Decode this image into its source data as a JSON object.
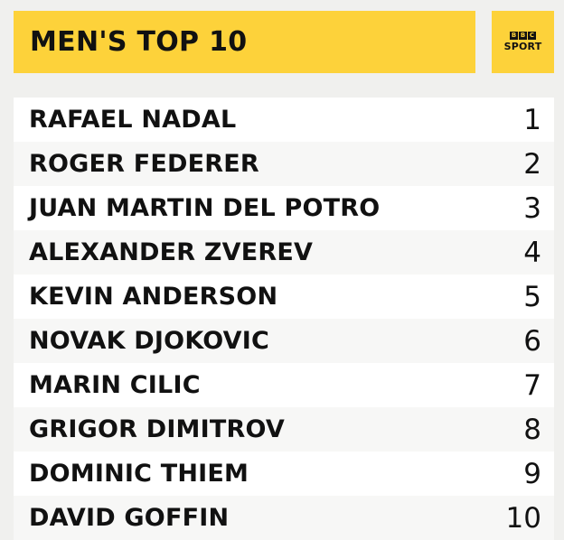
{
  "header": {
    "title": "MEN'S TOP 10"
  },
  "logo": {
    "letters": [
      "B",
      "B",
      "C"
    ],
    "sport": "SPORT"
  },
  "rankings": [
    {
      "name": "RAFAEL NADAL",
      "rank": "1"
    },
    {
      "name": "ROGER FEDERER",
      "rank": "2"
    },
    {
      "name": "JUAN MARTIN DEL POTRO",
      "rank": "3"
    },
    {
      "name": "ALEXANDER ZVEREV",
      "rank": "4"
    },
    {
      "name": "KEVIN ANDERSON",
      "rank": "5"
    },
    {
      "name": "NOVAK DJOKOVIC",
      "rank": "6"
    },
    {
      "name": "MARIN CILIC",
      "rank": "7"
    },
    {
      "name": "GRIGOR DIMITROV",
      "rank": "8"
    },
    {
      "name": "DOMINIC THIEM",
      "rank": "9"
    },
    {
      "name": "DAVID GOFFIN",
      "rank": "10"
    }
  ],
  "colors": {
    "accent": "#fdd23a",
    "background": "#f0f0ee",
    "row_light": "#ffffff",
    "row_alt": "#f7f7f6"
  }
}
